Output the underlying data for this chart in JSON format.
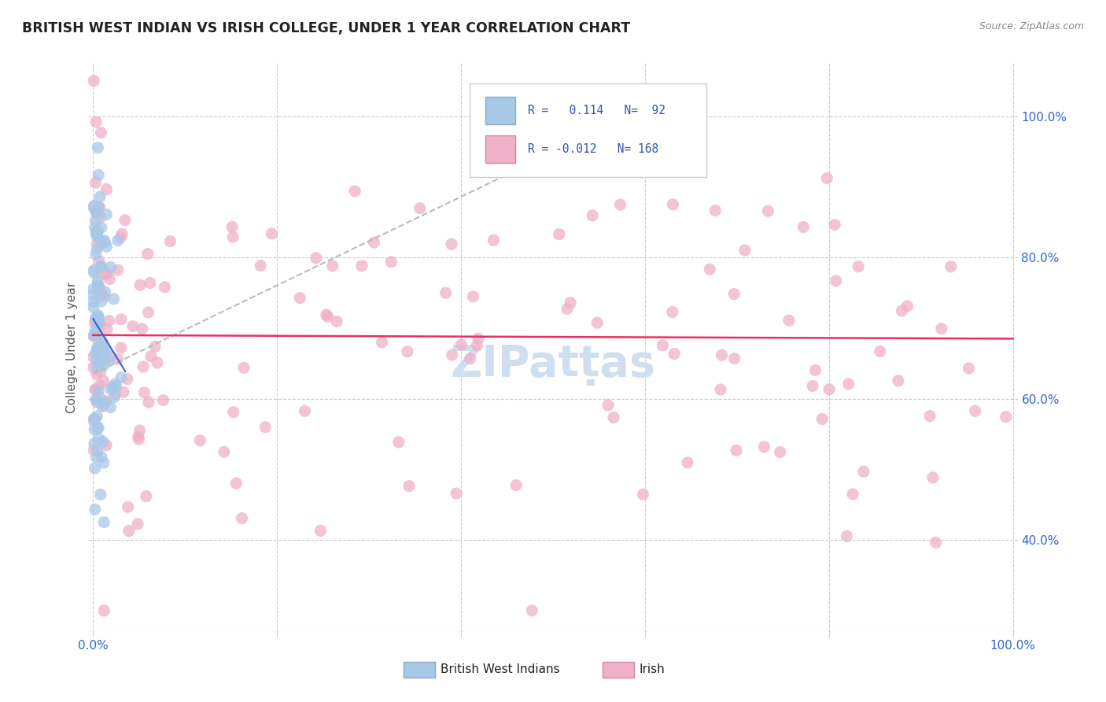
{
  "title": "BRITISH WEST INDIAN VS IRISH COLLEGE, UNDER 1 YEAR CORRELATION CHART",
  "source_text": "Source: ZipAtlas.com",
  "ylabel": "College, Under 1 year",
  "legend_blue_r": "0.114",
  "legend_blue_n": "92",
  "legend_pink_r": "-0.012",
  "legend_pink_n": "168",
  "blue_label": "British West Indians",
  "pink_label": "Irish",
  "blue_color": "#a8c8e8",
  "pink_color": "#f0b0c8",
  "blue_trend_color": "#bbbbbb",
  "pink_trend_color": "#e83060",
  "blue_solid_trend_color": "#3366cc",
  "title_color": "#222222",
  "tick_color": "#3366cc",
  "ylabel_color": "#555555",
  "watermark_color": "#d0dff0",
  "legend_border_color": "#cccccc",
  "grid_color": "#cccccc",
  "axis_line_color": "#cccccc"
}
